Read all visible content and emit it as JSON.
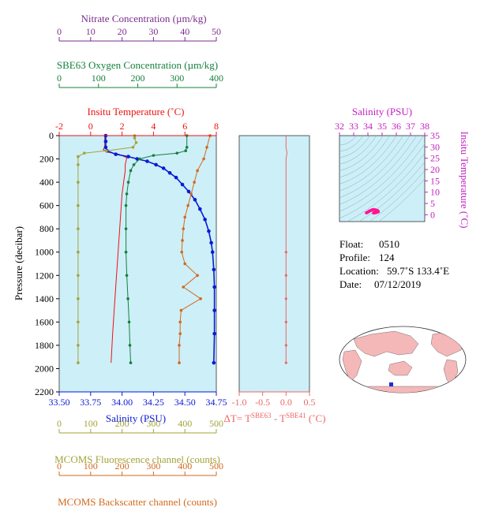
{
  "colors": {
    "panel_bg": "#cdeff8",
    "nitrate": "#7b2e8e",
    "oxygen": "#15803d",
    "temperature": "#ee1111",
    "salinity": "#0a1ad6",
    "fluorescence": "#a3a33a",
    "backscatter": "#d2691e",
    "delta_t": "#ee6666",
    "ts_points": "#ff1493",
    "ts_axis": "#c11fc1",
    "land": "#f4b8b8",
    "ocean": "#ffffff",
    "float_marker": "#1f2ad6"
  },
  "float_info": {
    "float_label": "Float:",
    "float_value": "0510",
    "profile_label": "Profile:",
    "profile_value": "124",
    "location_label": "Location:",
    "location_value": "59.7˚S  133.4˚E",
    "date_label": "Date:",
    "date_value": "07/12/2019"
  },
  "map": {
    "type": "world-map",
    "float_position": "59.7˚S  133.4˚E"
  },
  "chart_data": [
    {
      "type": "line",
      "panel": "main-profile",
      "axes": {
        "pressure": {
          "label": "Pressure (decibar)",
          "range": [
            0,
            2200
          ],
          "inverted": true,
          "ticks": [
            "0",
            "200",
            "400",
            "600",
            "800",
            "1000",
            "1200",
            "1400",
            "1600",
            "1800",
            "2000",
            "2200"
          ]
        },
        "nitrate": {
          "label": "Nitrate Concentration (µm/kg)",
          "range": [
            0,
            50
          ],
          "ticks": [
            "0",
            "10",
            "20",
            "30",
            "40",
            "50"
          ]
        },
        "oxygen": {
          "label": "SBE63 Oxygen Concentration (µm/kg)",
          "range": [
            0,
            400
          ],
          "ticks": [
            "0",
            "100",
            "200",
            "300",
            "400"
          ]
        },
        "temperature": {
          "label": "Insitu Temperature (˚C)",
          "range": [
            -2,
            8
          ],
          "ticks": [
            "-2",
            "0",
            "2",
            "4",
            "6",
            "8"
          ]
        },
        "salinity": {
          "label": "Salinity (PSU)",
          "range": [
            33.5,
            34.75
          ],
          "ticks": [
            "33.50",
            "33.75",
            "34.00",
            "34.25",
            "34.50",
            "34.75"
          ]
        },
        "fluorescence": {
          "label": "MCOMS Fluorescence channel (counts)",
          "range": [
            0,
            500
          ],
          "ticks": [
            "0",
            "100",
            "200",
            "300",
            "400",
            "500"
          ]
        },
        "backscatter": {
          "label": "MCOMS Backscatter channel (counts)",
          "range": [
            0,
            500
          ],
          "ticks": [
            "0",
            "100",
            "200",
            "300",
            "400",
            "500"
          ]
        }
      },
      "series": [
        {
          "name": "Insitu Temperature",
          "axis": "temperature",
          "style": "line",
          "points": [
            [
              0.9,
              0
            ],
            [
              0.9,
              25
            ],
            [
              0.9,
              50
            ],
            [
              0.9,
              75
            ],
            [
              0.9,
              100
            ],
            [
              0.8,
              120
            ],
            [
              1.0,
              140
            ],
            [
              1.8,
              160
            ],
            [
              2.3,
              190
            ],
            [
              2.2,
              250
            ],
            [
              2.2,
              300
            ],
            [
              2.1,
              400
            ],
            [
              2.0,
              500
            ],
            [
              1.9,
              700
            ],
            [
              1.8,
              900
            ],
            [
              1.7,
              1100
            ],
            [
              1.6,
              1300
            ],
            [
              1.5,
              1500
            ],
            [
              1.4,
              1700
            ],
            [
              1.3,
              1950
            ]
          ]
        },
        {
          "name": "Salinity",
          "axis": "salinity",
          "style": "line+dots",
          "points": [
            [
              33.87,
              0
            ],
            [
              33.87,
              50
            ],
            [
              33.87,
              100
            ],
            [
              33.88,
              130
            ],
            [
              33.95,
              160
            ],
            [
              34.05,
              180
            ],
            [
              34.12,
              200
            ],
            [
              34.2,
              220
            ],
            [
              34.27,
              250
            ],
            [
              34.33,
              280
            ],
            [
              34.38,
              320
            ],
            [
              34.43,
              360
            ],
            [
              34.48,
              420
            ],
            [
              34.53,
              480
            ],
            [
              34.58,
              550
            ],
            [
              34.62,
              630
            ],
            [
              34.66,
              720
            ],
            [
              34.69,
              820
            ],
            [
              34.71,
              920
            ],
            [
              34.72,
              1000
            ],
            [
              34.73,
              1150
            ],
            [
              34.735,
              1300
            ],
            [
              34.735,
              1500
            ],
            [
              34.735,
              1700
            ],
            [
              34.73,
              1950
            ]
          ]
        },
        {
          "name": "SBE63 Oxygen",
          "axis": "oxygen",
          "style": "line+dots",
          "points": [
            [
              325,
              0
            ],
            [
              325,
              100
            ],
            [
              322,
              130
            ],
            [
              300,
              150
            ],
            [
              240,
              170
            ],
            [
              205,
              200
            ],
            [
              190,
              250
            ],
            [
              182,
              300
            ],
            [
              176,
              400
            ],
            [
              172,
              500
            ],
            [
              170,
              600
            ],
            [
              170,
              800
            ],
            [
              170,
              1000
            ],
            [
              172,
              1200
            ],
            [
              175,
              1400
            ],
            [
              178,
              1600
            ],
            [
              180,
              1800
            ],
            [
              182,
              1950
            ]
          ]
        },
        {
          "name": "MCOMS Fluorescence",
          "axis": "fluorescence",
          "style": "line+dots",
          "points": [
            [
              240,
              0
            ],
            [
              240,
              20
            ],
            [
              245,
              60
            ],
            [
              235,
              100
            ],
            [
              150,
              130
            ],
            [
              80,
              150
            ],
            [
              60,
              180
            ],
            [
              60,
              250
            ],
            [
              60,
              400
            ],
            [
              60,
              600
            ],
            [
              60,
              800
            ],
            [
              60,
              1000
            ],
            [
              60,
              1200
            ],
            [
              60,
              1400
            ],
            [
              60,
              1600
            ],
            [
              60,
              1800
            ],
            [
              60,
              1950
            ]
          ]
        },
        {
          "name": "MCOMS Backscatter",
          "axis": "backscatter",
          "style": "line+dots",
          "points": [
            [
              480,
              0
            ],
            [
              470,
              100
            ],
            [
              460,
              200
            ],
            [
              440,
              300
            ],
            [
              430,
              400
            ],
            [
              420,
              500
            ],
            [
              410,
              600
            ],
            [
              400,
              700
            ],
            [
              395,
              800
            ],
            [
              392,
              900
            ],
            [
              390,
              1000
            ],
            [
              400,
              1100
            ],
            [
              440,
              1200
            ],
            [
              395,
              1300
            ],
            [
              450,
              1400
            ],
            [
              388,
              1500
            ],
            [
              385,
              1600
            ],
            [
              385,
              1700
            ],
            [
              382,
              1800
            ],
            [
              382,
              1950
            ]
          ]
        }
      ]
    },
    {
      "type": "line",
      "panel": "delta-t",
      "xlabel": "ΔT= T^SBE63 - T^SBE41 (˚C)",
      "xrange": [
        -1.0,
        0.5
      ],
      "xticks": [
        "-1.0",
        "-0.5",
        "0.0",
        "0.5"
      ],
      "yrange": [
        0,
        2200
      ],
      "points": [
        [
          0.0,
          0
        ],
        [
          0.0,
          100
        ],
        [
          0.02,
          150
        ],
        [
          0.0,
          200
        ],
        [
          0.0,
          400
        ],
        [
          0.0,
          600
        ],
        [
          0.0,
          800
        ],
        [
          0.0,
          1000
        ],
        [
          0.0,
          1200
        ],
        [
          0.0,
          1400
        ],
        [
          0.0,
          1600
        ],
        [
          0.0,
          1800
        ],
        [
          0.0,
          1950
        ]
      ]
    },
    {
      "type": "scatter",
      "panel": "ts-diagram",
      "xlabel": "Salinity (PSU)",
      "ylabel": "Insitu Temperature (˚C)",
      "xrange": [
        32,
        38
      ],
      "yrange": [
        -3,
        35
      ],
      "xticks": [
        "32",
        "33",
        "34",
        "35",
        "36",
        "37",
        "38"
      ],
      "yticks": [
        "0",
        "5",
        "10",
        "15",
        "20",
        "25",
        "30",
        "35"
      ],
      "points": [
        [
          33.9,
          0.9
        ],
        [
          34.0,
          1.2
        ],
        [
          34.1,
          1.6
        ],
        [
          34.2,
          1.9
        ],
        [
          34.3,
          2.2
        ],
        [
          34.4,
          2.3
        ],
        [
          34.5,
          2.2
        ],
        [
          34.55,
          2.1
        ],
        [
          34.6,
          2.0
        ],
        [
          34.65,
          1.9
        ],
        [
          34.7,
          1.7
        ],
        [
          34.72,
          1.5
        ],
        [
          34.73,
          1.3
        ],
        [
          34.6,
          1.0
        ],
        [
          34.5,
          0.9
        ],
        [
          34.4,
          0.8
        ]
      ]
    }
  ]
}
